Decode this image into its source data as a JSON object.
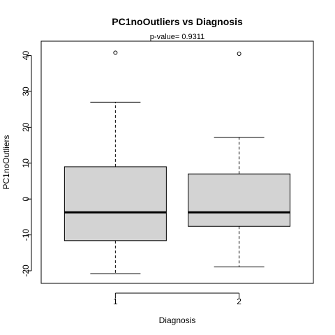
{
  "chart_data": {
    "type": "boxplot",
    "title": "PC1noOutliers  vs  Diagnosis",
    "subtitle": "p-value= 0.9311",
    "xlabel": "Diagnosis",
    "ylabel": "PC1noOutliers",
    "ylim": [
      -23.5,
      44
    ],
    "yticks": [
      -20,
      -10,
      0,
      10,
      20,
      30,
      40
    ],
    "categories": [
      "1",
      "2"
    ],
    "boxes": [
      {
        "label": "1",
        "lower_whisker": -20.8,
        "q1": -11.6,
        "median": -3.7,
        "q3": 9.0,
        "upper_whisker": 27.0,
        "outliers": [
          40.8
        ]
      },
      {
        "label": "2",
        "lower_whisker": -18.9,
        "q1": -7.6,
        "median": -3.7,
        "q3": 7.0,
        "upper_whisker": 17.2,
        "outliers": [
          40.5
        ]
      }
    ],
    "box_fill": "#d3d3d3",
    "grid": false
  }
}
